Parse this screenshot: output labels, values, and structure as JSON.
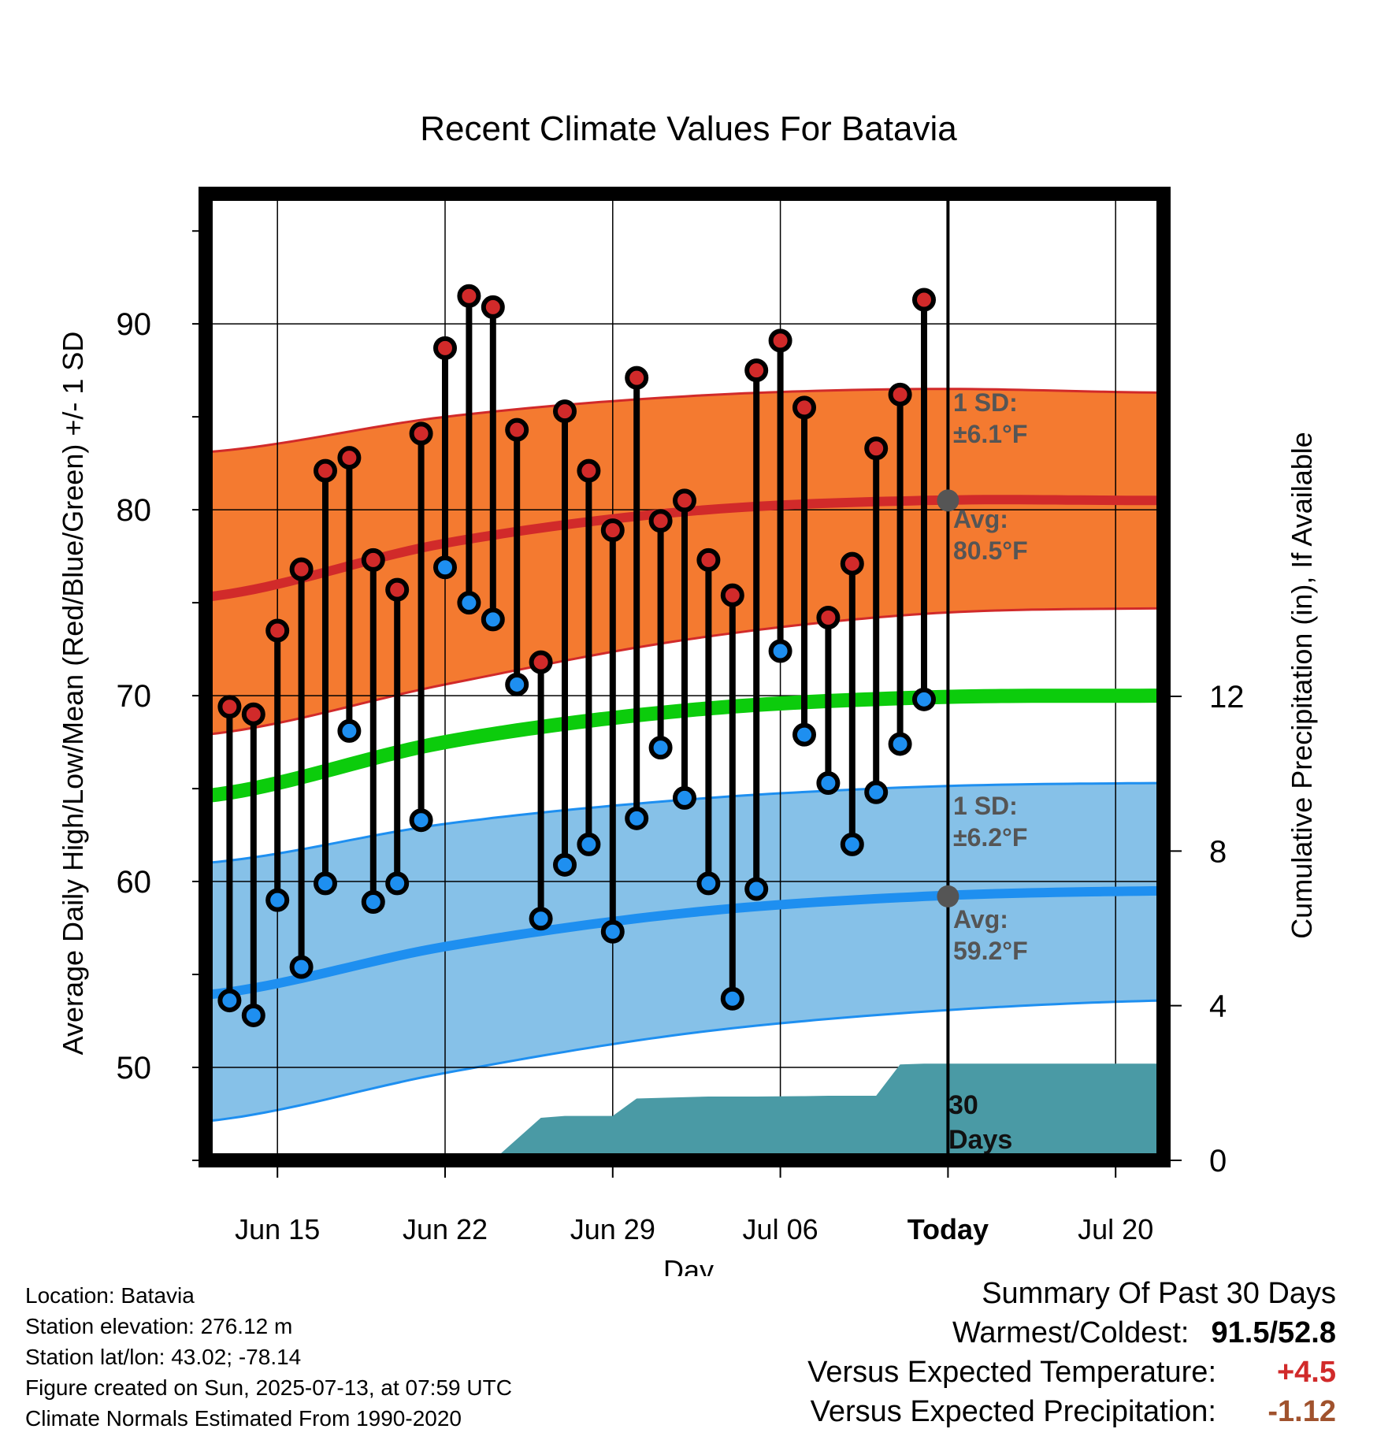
{
  "chart_data": {
    "type": "line",
    "title": "Recent Climate Values For Batavia",
    "xlabel": "Day",
    "ylabel": "Average Daily High/Low/Mean (Red/Blue/Green) +/- 1 SD",
    "y2label": "Cumulative Precipitation (in), If Available",
    "x_ticks": [
      "Jun 15",
      "Jun 22",
      "Jun 29",
      "Jul 06",
      "Today",
      "Jul 20"
    ],
    "y_ticks": [
      50,
      60,
      70,
      80,
      90
    ],
    "y2_ticks": [
      0,
      4,
      8,
      12
    ],
    "ylim": [
      45,
      97
    ],
    "y2lim": [
      0,
      25
    ],
    "xlim": [
      "Jun 12",
      "Jul 22"
    ],
    "grid": true,
    "observed_days": [
      "Jun 13",
      "Jun 14",
      "Jun 15",
      "Jun 16",
      "Jun 17",
      "Jun 18",
      "Jun 19",
      "Jun 20",
      "Jun 21",
      "Jun 22",
      "Jun 23",
      "Jun 24",
      "Jun 25",
      "Jun 26",
      "Jun 27",
      "Jun 28",
      "Jun 29",
      "Jun 30",
      "Jul 01",
      "Jul 02",
      "Jul 03",
      "Jul 04",
      "Jul 05",
      "Jul 06",
      "Jul 07",
      "Jul 08",
      "Jul 09",
      "Jul 10",
      "Jul 11",
      "Jul 12"
    ],
    "series": [
      {
        "name": "Daily High",
        "color": "#d12a2a",
        "values": [
          69.4,
          69.0,
          73.5,
          76.8,
          82.1,
          82.8,
          77.3,
          75.7,
          84.1,
          88.7,
          91.5,
          90.9,
          84.3,
          71.8,
          85.3,
          82.1,
          78.9,
          87.1,
          79.4,
          80.5,
          77.3,
          75.4,
          87.5,
          89.1,
          85.5,
          74.2,
          77.1,
          83.3,
          86.2,
          91.3
        ]
      },
      {
        "name": "Daily Low",
        "color": "#1e8ff0",
        "values": [
          53.6,
          52.8,
          59.0,
          55.4,
          59.9,
          68.1,
          58.9,
          59.9,
          63.3,
          76.9,
          75.0,
          74.1,
          70.6,
          58.0,
          60.9,
          62.0,
          57.3,
          63.4,
          67.2,
          64.5,
          59.9,
          53.7,
          59.6,
          72.4,
          67.9,
          65.3,
          62.0,
          64.8,
          67.4,
          69.8
        ]
      }
    ],
    "normals": {
      "x": [
        "Jun 12",
        "Jun 22",
        "Jul 02",
        "Jul 12",
        "Jul 22"
      ],
      "high_avg": [
        75.3,
        78.2,
        79.9,
        80.5,
        80.5
      ],
      "high_plus_sd": [
        83.1,
        85.0,
        86.1,
        86.5,
        86.3
      ],
      "high_minus_sd": [
        67.9,
        70.6,
        73.0,
        74.4,
        74.7
      ],
      "mean_avg": [
        64.6,
        67.5,
        69.2,
        69.9,
        70.0
      ],
      "low_avg": [
        53.9,
        56.5,
        58.3,
        59.2,
        59.5
      ],
      "low_plus_sd": [
        61.0,
        63.1,
        64.4,
        65.1,
        65.3
      ],
      "low_minus_sd": [
        47.1,
        49.7,
        51.8,
        53.0,
        53.6
      ]
    },
    "precip_cumulative": {
      "x": [
        "Jun 24",
        "Jun 26",
        "Jun 27",
        "Jun 29",
        "Jun 30",
        "Jul 03",
        "Jul 05",
        "Jul 07",
        "Jul 08",
        "Jul 10",
        "Jul 11",
        "Jul 12",
        "Jul 22"
      ],
      "values": [
        0.0,
        1.1,
        1.15,
        1.15,
        1.6,
        1.65,
        1.65,
        1.66,
        1.67,
        1.67,
        2.48,
        2.5,
        2.5
      ]
    },
    "colors": {
      "high_band": "#f47a30",
      "high_line": "#d12a2a",
      "low_band": "#86c1e8",
      "low_line": "#1e8ff0",
      "mean_line": "#0ccc0c",
      "precip": "#4a9aa5",
      "annotation": "#555555"
    },
    "annotations": {
      "high_sd": [
        "1 SD:",
        "±6.1°F"
      ],
      "high_avg": [
        "Avg:",
        "80.5°F"
      ],
      "low_sd": [
        "1 SD:",
        "±6.2°F"
      ],
      "low_avg": [
        "Avg:",
        "59.2°F"
      ],
      "precip_days": [
        "30",
        "Days"
      ]
    }
  },
  "metadata": {
    "lines": [
      "Location: Batavia",
      "Station elevation: 276.12 m",
      "Station lat/lon: 43.02; -78.14",
      "Figure created on Sun, 2025-07-13, at 07:59 UTC",
      "Climate Normals Estimated From 1990-2020"
    ]
  },
  "summary": {
    "heading": "Summary Of Past 30 Days",
    "warmest_coldest_label": "Warmest/Coldest:",
    "warmest": "91.5",
    "slash": "/",
    "coldest": "52.8",
    "temp_label": "Versus Expected Temperature:",
    "temp_value": "+4.5",
    "temp_color": "#d12a2a",
    "precip_label": "Versus Expected Precipitation:",
    "precip_value": "-1.12",
    "precip_color": "#a0522d"
  }
}
